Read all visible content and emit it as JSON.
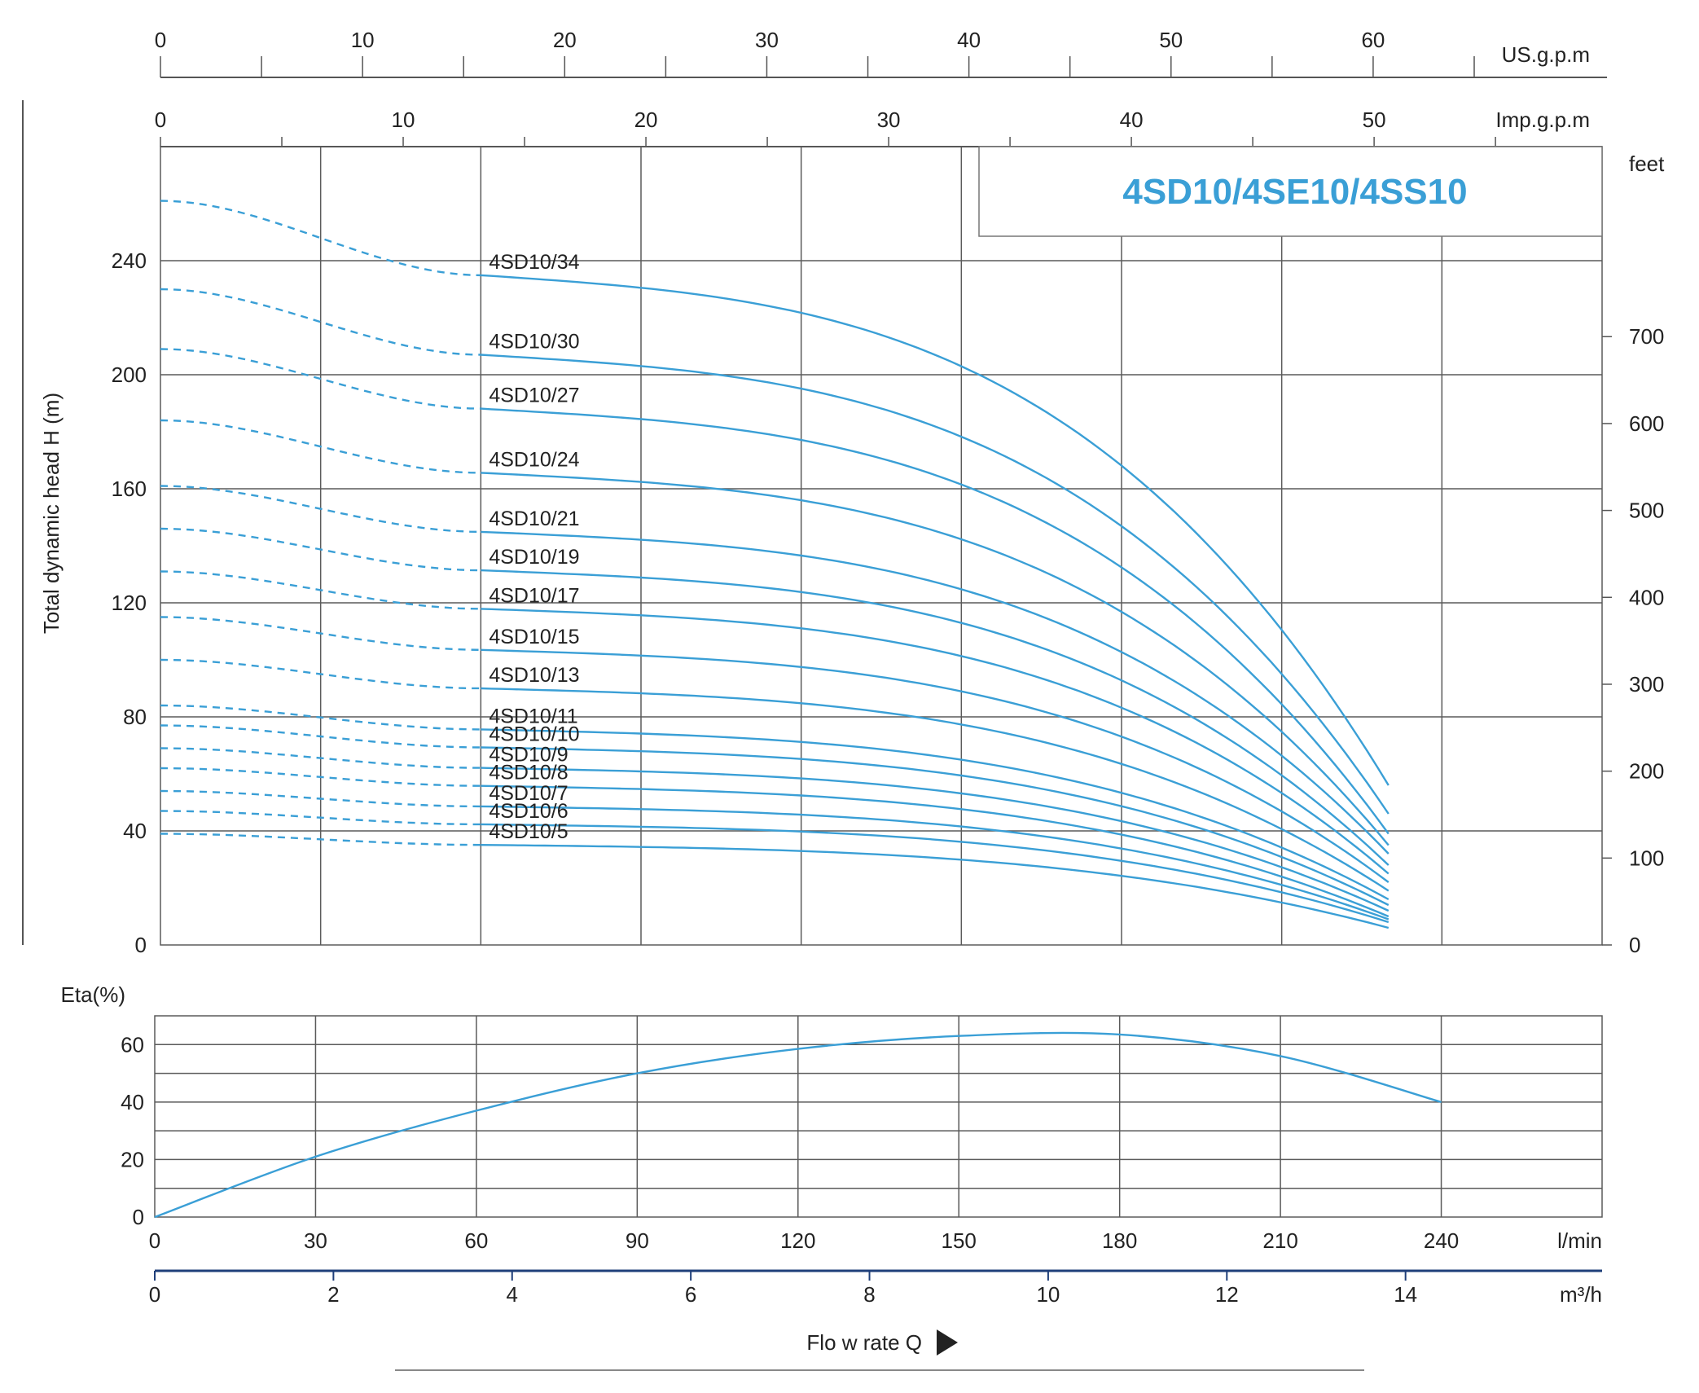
{
  "chart_data": [
    {
      "type": "line",
      "title": "4SD10/4SE10/4SS10",
      "ylabel": "Total dynamic head H (m)",
      "y2label": "feet",
      "ylim": [
        0,
        280
      ],
      "yticks": [
        0,
        40,
        80,
        120,
        160,
        200,
        240
      ],
      "y2ticks": [
        0,
        100,
        200,
        300,
        400,
        500,
        600,
        700
      ],
      "xlim_lpm": [
        0,
        270
      ],
      "x_top_axes": [
        {
          "label": "US.g.p.m",
          "ticks": [
            0,
            10,
            20,
            30,
            40,
            50,
            60
          ]
        },
        {
          "label": "Imp.g.p.m",
          "ticks": [
            0,
            10,
            20,
            30,
            40,
            50
          ]
        }
      ],
      "series": [
        {
          "name": "4SD10/34",
          "h0": 261,
          "hend": 56
        },
        {
          "name": "4SD10/30",
          "h0": 230,
          "hend": 46
        },
        {
          "name": "4SD10/27",
          "h0": 209,
          "hend": 39
        },
        {
          "name": "4SD10/24",
          "h0": 184,
          "hend": 35
        },
        {
          "name": "4SD10/21",
          "h0": 161,
          "hend": 32
        },
        {
          "name": "4SD10/19",
          "h0": 146,
          "hend": 28
        },
        {
          "name": "4SD10/17",
          "h0": 131,
          "hend": 25
        },
        {
          "name": "4SD10/15",
          "h0": 115,
          "hend": 22
        },
        {
          "name": "4SD10/13",
          "h0": 100,
          "hend": 19
        },
        {
          "name": "4SD10/11",
          "h0": 84,
          "hend": 16
        },
        {
          "name": "4SD10/10",
          "h0": 77,
          "hend": 14
        },
        {
          "name": "4SD10/9",
          "h0": 69,
          "hend": 12
        },
        {
          "name": "4SD10/8",
          "h0": 62,
          "hend": 10
        },
        {
          "name": "4SD10/7",
          "h0": 54,
          "hend": 9
        },
        {
          "name": "4SD10/6",
          "h0": 47,
          "hend": 8
        },
        {
          "name": "4SD10/5",
          "h0": 39,
          "hend": 6
        }
      ]
    },
    {
      "type": "line",
      "ylabel": "Eta(%)",
      "ylim": [
        0,
        70
      ],
      "yticks": [
        0,
        20,
        40,
        60
      ],
      "x": [
        0,
        30,
        60,
        90,
        120,
        150,
        180,
        210,
        240
      ],
      "y": [
        0,
        21,
        37,
        50,
        58.5,
        63,
        63.5,
        56,
        40
      ]
    }
  ],
  "x_axes": {
    "lpm_label": "l/min",
    "lpm_ticks": [
      0,
      30,
      60,
      90,
      120,
      150,
      180,
      210,
      240
    ],
    "m3h_label": "m³/h",
    "m3h_ticks": [
      0,
      2,
      4,
      6,
      8,
      10,
      12,
      14
    ],
    "flow_label": "Flo w rate Q"
  },
  "colors": {
    "curve": "#3a9fd6",
    "grid": "#5a5a5a",
    "title": "#3a9fd6",
    "bottom_axis": "#1f3f7a"
  }
}
